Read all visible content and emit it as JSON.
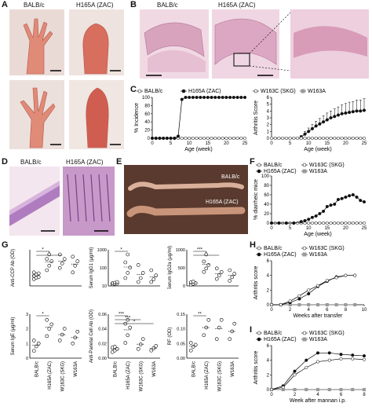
{
  "panels": {
    "A": {
      "letter": "A",
      "col_labels": [
        "BALB/c",
        "H165A (ZAC)"
      ]
    },
    "B": {
      "letter": "B",
      "col_labels": [
        "BALB/c",
        "H165A (ZAC)"
      ]
    },
    "C": {
      "letter": "C"
    },
    "D": {
      "letter": "D",
      "col_labels": [
        "BALB/c",
        "H165A (ZAC)"
      ]
    },
    "E": {
      "letter": "E",
      "labels": [
        "BALB/c",
        "H165A (ZAC)"
      ]
    },
    "F": {
      "letter": "F"
    },
    "G": {
      "letter": "G"
    },
    "H": {
      "letter": "H"
    },
    "I": {
      "letter": "I"
    }
  },
  "colors": {
    "black": "#111111",
    "open": "#ffffff",
    "gray": "#9a9a9a",
    "hist_pink": "#e9b7cf",
    "paw_red": "#d9735f",
    "tissue_bg": "#c9a08f"
  },
  "chart_data": [
    {
      "id": "C1",
      "type": "line",
      "ylabel": "% Incidence",
      "xlabel": "Age (week)",
      "xlim": [
        0,
        25
      ],
      "ylim": [
        0,
        100
      ],
      "xticks": [
        0,
        5,
        10,
        15,
        20,
        25
      ],
      "yticks": [
        0,
        20,
        40,
        60,
        80,
        100
      ],
      "legend": [
        "BALB/c",
        "H165A (ZAC)"
      ],
      "series": [
        {
          "name": "BALB/c",
          "marker": "open",
          "x": [
            0,
            1,
            2,
            3,
            4,
            5,
            6,
            7,
            8,
            9,
            10,
            11,
            12,
            13,
            14,
            15,
            16,
            17,
            18,
            19,
            20,
            21,
            22,
            23,
            24,
            25
          ],
          "y": [
            0,
            0,
            0,
            0,
            0,
            0,
            0,
            0,
            0,
            0,
            0,
            0,
            0,
            0,
            0,
            0,
            0,
            0,
            0,
            0,
            0,
            0,
            0,
            0,
            0,
            0
          ]
        },
        {
          "name": "H165A (ZAC)",
          "marker": "filled",
          "x": [
            0,
            1,
            2,
            3,
            4,
            5,
            6,
            7,
            8,
            9,
            10,
            11,
            12,
            13,
            14,
            15,
            16,
            17,
            18,
            19,
            20,
            21,
            22,
            23,
            24,
            25
          ],
          "y": [
            0,
            0,
            0,
            0,
            0,
            0,
            0,
            5,
            95,
            100,
            100,
            100,
            100,
            100,
            100,
            100,
            100,
            100,
            100,
            100,
            100,
            100,
            100,
            100,
            100,
            100
          ]
        }
      ]
    },
    {
      "id": "C2",
      "type": "line",
      "ylabel": "Arthritis Score",
      "xlabel": "Age (week)",
      "xlim": [
        0,
        25
      ],
      "ylim": [
        0,
        6
      ],
      "xticks": [
        0,
        5,
        10,
        15,
        20,
        25
      ],
      "yticks": [
        0,
        1,
        2,
        3,
        4,
        5,
        6
      ],
      "legend": [
        "W163C (SKG)",
        "W163A"
      ],
      "series": [
        {
          "name": "H165A (ZAC)",
          "marker": "filled",
          "x": [
            8,
            9,
            10,
            11,
            12,
            13,
            14,
            15,
            16,
            17,
            18,
            19,
            20,
            21,
            22,
            23,
            24,
            25
          ],
          "y": [
            0.2,
            0.6,
            1.0,
            1.4,
            1.8,
            2.1,
            2.4,
            2.7,
            3.0,
            3.2,
            3.4,
            3.6,
            3.7,
            3.8,
            3.9,
            4.0,
            4.0,
            4.1
          ],
          "err": [
            0.2,
            0.4,
            0.5,
            0.6,
            0.7,
            0.8,
            0.9,
            1.0,
            1.0,
            1.1,
            1.2,
            1.3,
            1.4,
            1.5,
            1.5,
            1.6,
            1.6,
            1.7
          ]
        },
        {
          "name": "BALB/c",
          "marker": "open",
          "x": [
            0,
            1,
            2,
            3,
            4,
            5,
            6,
            7,
            8,
            9,
            10,
            11,
            12,
            13,
            14,
            15,
            16,
            17,
            18,
            19,
            20,
            21,
            22,
            23,
            24,
            25
          ],
          "y": [
            0,
            0,
            0,
            0,
            0,
            0,
            0,
            0,
            0,
            0,
            0,
            0,
            0,
            0,
            0,
            0,
            0,
            0,
            0,
            0,
            0,
            0,
            0,
            0,
            0,
            0
          ]
        }
      ]
    },
    {
      "id": "F",
      "type": "line",
      "ylabel": "% diarrheic mice",
      "xlabel": "Age (week)",
      "xlim": [
        0,
        25
      ],
      "ylim": [
        0,
        100
      ],
      "xticks": [
        0,
        5,
        10,
        15,
        20,
        25
      ],
      "yticks": [
        0,
        20,
        40,
        60,
        80,
        100
      ],
      "legend": [
        "BALB/c",
        "W163C (SKG)",
        "H165A (ZAC)",
        "W163A"
      ],
      "series": [
        {
          "name": "BALB/c",
          "marker": "open",
          "x": [
            0,
            1,
            2,
            3,
            4,
            5,
            6,
            7,
            8,
            9,
            10,
            11,
            12,
            13,
            14,
            15,
            16,
            17,
            18,
            19,
            20,
            21,
            22,
            23,
            24,
            25
          ],
          "y": [
            0,
            0,
            0,
            0,
            0,
            0,
            0,
            0,
            0,
            0,
            0,
            0,
            0,
            0,
            0,
            0,
            0,
            0,
            0,
            0,
            0,
            0,
            0,
            0,
            0,
            0
          ]
        },
        {
          "name": "H165A (ZAC)",
          "marker": "filled",
          "x": [
            0,
            2,
            4,
            6,
            8,
            9,
            10,
            11,
            12,
            13,
            14,
            15,
            16,
            17,
            18,
            19,
            20,
            21,
            22,
            23,
            24,
            25
          ],
          "y": [
            0,
            0,
            0,
            0,
            3,
            5,
            8,
            12,
            15,
            20,
            25,
            35,
            38,
            40,
            50,
            52,
            55,
            58,
            60,
            55,
            48,
            45
          ]
        }
      ]
    },
    {
      "id": "G1",
      "type": "scatter",
      "ylabel": "Anti-CCP Ab (OD)",
      "categories": [
        "BALB/c",
        "H165A (ZAC)",
        "W163C (SKG)",
        "W163A"
      ],
      "significance": [
        "*",
        "*"
      ],
      "series": [
        {
          "name": "points",
          "values": [
            [
              0.15,
              0.18,
              0.2,
              0.22,
              0.25,
              0.28,
              0.3
            ],
            [
              0.35,
              0.45,
              0.55,
              0.6,
              0.7
            ],
            [
              0.4,
              0.5,
              0.6,
              0.7
            ],
            [
              0.3,
              0.45,
              0.55,
              0.65
            ]
          ]
        }
      ]
    },
    {
      "id": "G2",
      "type": "scatter",
      "ylabel": "Serum IgG1 (μg/ml)",
      "categories": [
        "BALB/c",
        "H165A (ZAC)",
        "W163C (SKG)",
        "W163A"
      ],
      "yticks": [
        "10",
        "100",
        "1000"
      ],
      "significance": [
        "*"
      ],
      "series": [
        {
          "name": "points",
          "values": [
            [
              60,
              80,
              90,
              100,
              120,
              150
            ],
            [
              300,
              500,
              700,
              900,
              1200
            ],
            [
              150,
              300,
              500,
              800
            ],
            [
              150,
              250,
              400,
              600
            ]
          ]
        }
      ]
    },
    {
      "id": "G3",
      "type": "scatter",
      "ylabel": "Serum IgG2a (μg/ml)",
      "categories": [
        "BALB/c",
        "H165A (ZAC)",
        "W163C (SKG)",
        "W163A"
      ],
      "yticks": [
        "0",
        "500",
        "1000"
      ],
      "significance": [
        "***",
        "*"
      ],
      "series": [
        {
          "name": "points",
          "values": [
            [
              40,
              60,
              80,
              100,
              120
            ],
            [
              400,
              500,
              600,
              700,
              900
            ],
            [
              200,
              300,
              400,
              500
            ],
            [
              150,
              250,
              350,
              450
            ]
          ]
        }
      ]
    },
    {
      "id": "G4",
      "type": "scatter",
      "ylabel": "Serum IgE (μg/ml)",
      "categories": [
        "BALB/c",
        "H165A (ZAC)",
        "W163C (SKG)",
        "W163A"
      ],
      "yticks": [
        "0",
        "1",
        "2",
        "3"
      ],
      "significance": [
        "*"
      ],
      "series": [
        {
          "name": "points",
          "values": [
            [
              0.5,
              0.8,
              1.0,
              1.2
            ],
            [
              1.5,
              2.0,
              2.3,
              2.6
            ],
            [
              1.2,
              1.6,
              2.0
            ],
            [
              1.0,
              1.4,
              1.8
            ]
          ]
        }
      ]
    },
    {
      "id": "G5",
      "type": "scatter",
      "ylabel": "Anti-Parietal Cell Ab (OD)",
      "categories": [
        "BALB/c",
        "H165A (ZAC)",
        "W163C (SKG)",
        "W163A"
      ],
      "yticks": [
        "0.00",
        "0.02",
        "0.04",
        "0.06"
      ],
      "significance": [
        "***",
        "***",
        "*"
      ],
      "series": [
        {
          "name": "points",
          "values": [
            [
              0.008,
              0.01,
              0.012,
              0.014,
              0.015
            ],
            [
              0.02,
              0.03,
              0.04,
              0.045,
              0.05
            ],
            [
              0.012,
              0.018,
              0.025
            ],
            [
              0.01,
              0.013,
              0.016
            ]
          ]
        }
      ]
    },
    {
      "id": "G6",
      "type": "scatter",
      "ylabel": "RF (OD)",
      "categories": [
        "BALB/c",
        "H165A (ZAC)",
        "W163C (SKG)",
        "W163A"
      ],
      "yticks": [
        "0.00",
        "0.05",
        "0.10",
        "0.15"
      ],
      "significance": [
        "**"
      ],
      "series": [
        {
          "name": "points",
          "values": [
            [
              0.02,
              0.03,
              0.035,
              0.04
            ],
            [
              0.06,
              0.08,
              0.1
            ],
            [
              0.05,
              0.08,
              0.1
            ],
            [
              0.05,
              0.07,
              0.09
            ]
          ]
        }
      ]
    },
    {
      "id": "H",
      "type": "line",
      "ylabel": "Arthritis score",
      "xlabel": "Weeks after transfer",
      "xlim": [
        0,
        10
      ],
      "ylim": [
        0,
        6
      ],
      "xticks": [
        0,
        2,
        4,
        6,
        8,
        10
      ],
      "yticks": [
        0,
        2,
        4,
        6
      ],
      "legend": [
        "BALB/c",
        "W163C (SKG)",
        "H165A (ZAC)",
        "W163A"
      ],
      "series": [
        {
          "name": "BALB/c",
          "marker": "open",
          "x": [
            0,
            1,
            2,
            3,
            4,
            5,
            6,
            7,
            8,
            9
          ],
          "y": [
            0,
            0,
            0,
            0,
            0,
            0,
            0,
            0,
            0,
            0
          ]
        },
        {
          "name": "W163A",
          "marker": "gray",
          "x": [
            0,
            1,
            2,
            3,
            4,
            5,
            6,
            7,
            8,
            9
          ],
          "y": [
            0,
            0,
            0,
            0,
            0,
            0,
            0,
            0,
            0,
            0
          ]
        },
        {
          "name": "H165A (ZAC)",
          "marker": "filled",
          "x": [
            0,
            1,
            2,
            3,
            4,
            5,
            6,
            7,
            8,
            9
          ],
          "y": [
            0,
            0,
            0.3,
            0.8,
            1.5,
            2.5,
            3.2,
            3.8,
            4.0,
            4.0
          ]
        },
        {
          "name": "W163C (SKG)",
          "marker": "open",
          "x": [
            0,
            1,
            2,
            3,
            4,
            5,
            6,
            7,
            8,
            9
          ],
          "y": [
            0,
            0,
            0.5,
            1.2,
            2.0,
            2.6,
            3.3,
            3.7,
            4.0,
            4.0
          ]
        }
      ]
    },
    {
      "id": "I",
      "type": "line",
      "ylabel": "Arthritis score",
      "xlabel": "Week after mannan i.p.",
      "xlim": [
        0,
        8
      ],
      "ylim": [
        0,
        6
      ],
      "xticks": [
        0,
        2,
        4,
        6,
        8
      ],
      "yticks": [
        0,
        2,
        4,
        6
      ],
      "legend": [
        "BALB/c",
        "W163C (SKG)",
        "H165A (ZAC)",
        "W163A"
      ],
      "series": [
        {
          "name": "BALB/c",
          "marker": "open",
          "x": [
            0,
            1,
            2,
            3,
            4,
            5,
            6,
            7,
            8
          ],
          "y": [
            0,
            0,
            0,
            0,
            0,
            0,
            0,
            0,
            0
          ]
        },
        {
          "name": "W163A",
          "marker": "gray",
          "x": [
            0,
            1,
            2,
            3,
            4,
            5,
            6,
            7,
            8
          ],
          "y": [
            0,
            0,
            0,
            0,
            0,
            0,
            0,
            0,
            0
          ]
        },
        {
          "name": "H165A (ZAC)",
          "marker": "filled",
          "x": [
            0,
            1,
            2,
            3,
            4,
            5,
            6,
            7,
            8
          ],
          "y": [
            0,
            0.5,
            2.5,
            4.0,
            5.0,
            5.0,
            4.8,
            4.7,
            4.6
          ]
        },
        {
          "name": "W163C (SKG)",
          "marker": "open",
          "x": [
            0,
            1,
            2,
            3,
            4,
            5,
            6,
            7,
            8
          ],
          "y": [
            0,
            0.3,
            2.0,
            3.0,
            3.8,
            4.0,
            4.2,
            4.2,
            4.1
          ]
        }
      ]
    }
  ]
}
